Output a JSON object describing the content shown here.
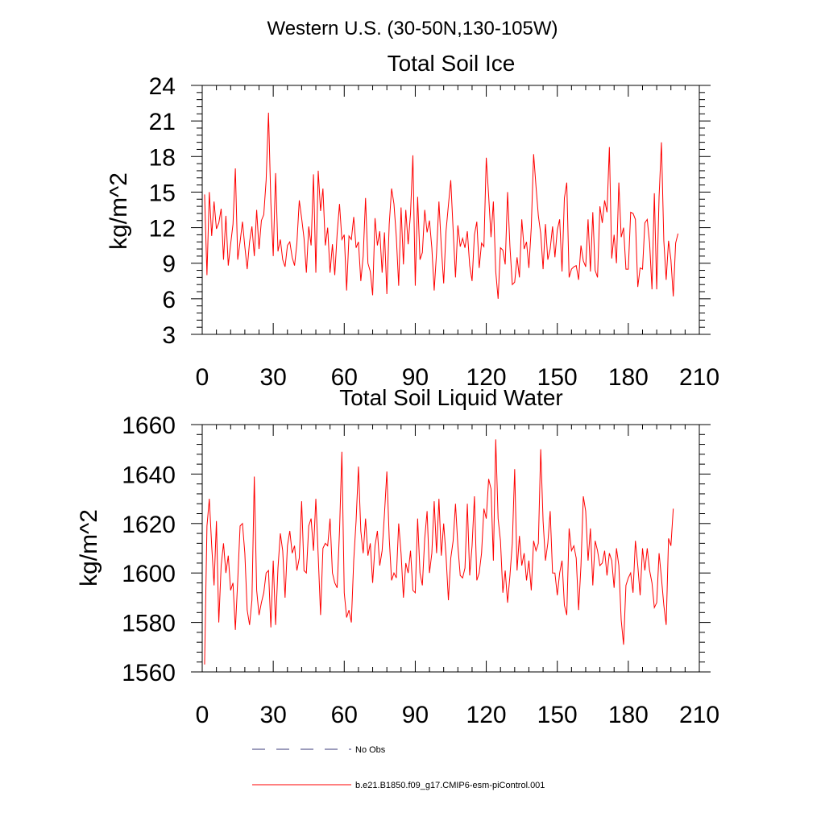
{
  "figure": {
    "suptitle": "Western U.S. (30-50N,130-105W)"
  },
  "colors": {
    "series": "#ff0000",
    "obs": "#3a3a7a",
    "axis": "#000000"
  },
  "legend": {
    "obs_label": "No Obs",
    "model_label": "b.e21.B1850.f09_g17.CMIP6-esm-piControl.001"
  },
  "chart_data": [
    {
      "type": "line",
      "title": "Total Soil Ice",
      "xlabel": "",
      "ylabel": "kg/m^2",
      "xlim": [
        0,
        210
      ],
      "ylim": [
        3,
        24
      ],
      "xticks": [
        0,
        30,
        60,
        90,
        120,
        150,
        180,
        210
      ],
      "yticks": [
        3,
        6,
        9,
        12,
        15,
        18,
        21,
        24
      ],
      "series": [
        {
          "name": "b.e21.B1850.f09_g17.CMIP6-esm-piControl.001",
          "x_start": 1,
          "values": [
            14.8,
            8.0,
            15.0,
            11.3,
            14.2,
            11.9,
            12.4,
            13.6,
            9.3,
            13.0,
            8.8,
            10.6,
            12.3,
            17.0,
            9.3,
            10.8,
            12.5,
            10.4,
            8.5,
            10.8,
            12.1,
            9.6,
            13.5,
            10.2,
            12.6,
            13.1,
            16.0,
            21.7,
            14.1,
            9.6,
            16.6,
            10.0,
            11.0,
            9.3,
            8.7,
            10.5,
            10.8,
            9.5,
            8.8,
            10.7,
            14.3,
            12.8,
            11.1,
            8.2,
            12.1,
            10.5,
            16.5,
            8.2,
            16.8,
            13.4,
            15.3,
            10.5,
            12.0,
            8.2,
            10.6,
            8.0,
            11.5,
            14.0,
            11.0,
            11.4,
            6.7,
            11.3,
            11.0,
            12.9,
            10.3,
            10.8,
            7.5,
            9.6,
            14.5,
            9.0,
            8.3,
            6.3,
            12.8,
            10.5,
            11.7,
            8.2,
            11.6,
            6.4,
            12.3,
            15.3,
            14.0,
            11.2,
            7.1,
            13.7,
            8.9,
            13.5,
            10.6,
            13.2,
            18.1,
            7.1,
            14.6,
            9.3,
            9.9,
            13.5,
            11.6,
            12.6,
            10.3,
            6.7,
            9.9,
            14.2,
            10.4,
            7.3,
            11.7,
            13.9,
            16.0,
            11.8,
            7.8,
            12.2,
            10.4,
            11.1,
            10.3,
            11.7,
            8.8,
            7.5,
            11.4,
            12.5,
            8.6,
            10.7,
            10.4,
            17.9,
            14.7,
            11.2,
            14.2,
            8.3,
            6.0,
            10.3,
            10.1,
            8.9,
            15.0,
            10.4,
            7.2,
            7.4,
            9.5,
            7.8,
            12.7,
            10.2,
            10.8,
            8.6,
            12.0,
            18.2,
            15.5,
            13.0,
            11.5,
            8.5,
            12.3,
            9.3,
            10.2,
            12.1,
            9.5,
            11.8,
            12.7,
            8.3,
            14.5,
            15.8,
            7.8,
            8.5,
            8.7,
            8.8,
            7.6,
            10.5,
            9.2,
            8.7,
            12.7,
            8.3,
            13.3,
            8.4,
            7.8,
            13.8,
            12.4,
            14.3,
            13.3,
            18.8,
            9.4,
            11.4,
            9.0,
            15.8,
            11.2,
            12.0,
            8.5,
            8.5,
            13.3,
            13.2,
            12.7,
            7.0,
            8.6,
            8.5,
            12.4,
            12.7,
            10.7,
            6.8,
            14.9,
            6.8,
            14.6,
            19.2,
            10.9,
            7.6,
            10.9,
            9.3,
            6.2,
            10.7,
            11.5
          ]
        }
      ]
    },
    {
      "type": "line",
      "title": "Total Soil Liquid Water",
      "xlabel": "",
      "ylabel": "kg/m^2",
      "xlim": [
        0,
        210
      ],
      "ylim": [
        1560,
        1660
      ],
      "xticks": [
        0,
        30,
        60,
        90,
        120,
        150,
        180,
        210
      ],
      "yticks": [
        1560,
        1580,
        1600,
        1620,
        1640,
        1660
      ],
      "series": [
        {
          "name": "b.e21.B1850.f09_g17.CMIP6-esm-piControl.001",
          "x_start": 1,
          "values": [
            1563,
            1619,
            1630,
            1611,
            1595,
            1621,
            1580,
            1603,
            1612,
            1600,
            1607,
            1593,
            1596,
            1577,
            1597,
            1619,
            1620,
            1608,
            1585,
            1579,
            1589,
            1639,
            1593,
            1583,
            1588,
            1592,
            1600,
            1601,
            1578,
            1605,
            1579,
            1602,
            1616,
            1609,
            1590,
            1611,
            1617,
            1608,
            1611,
            1601,
            1606,
            1629,
            1601,
            1600,
            1619,
            1622,
            1609,
            1630,
            1607,
            1583,
            1610,
            1612,
            1611,
            1622,
            1600,
            1596,
            1594,
            1617,
            1649,
            1592,
            1582,
            1585,
            1580,
            1605,
            1621,
            1643,
            1617,
            1608,
            1622,
            1607,
            1612,
            1596,
            1611,
            1617,
            1603,
            1609,
            1624,
            1641,
            1614,
            1597,
            1600,
            1598,
            1620,
            1608,
            1590,
            1604,
            1600,
            1609,
            1593,
            1592,
            1622,
            1600,
            1595,
            1614,
            1625,
            1600,
            1608,
            1629,
            1608,
            1630,
            1607,
            1620,
            1607,
            1589,
            1606,
            1613,
            1628,
            1611,
            1599,
            1598,
            1602,
            1628,
            1599,
            1611,
            1631,
            1597,
            1600,
            1608,
            1626,
            1622,
            1638,
            1634,
            1605,
            1654,
            1622,
            1613,
            1592,
            1601,
            1588,
            1599,
            1612,
            1642,
            1601,
            1615,
            1603,
            1608,
            1597,
            1605,
            1593,
            1613,
            1609,
            1612,
            1650,
            1621,
            1605,
            1612,
            1625,
            1600,
            1600,
            1591,
            1600,
            1605,
            1587,
            1583,
            1618,
            1609,
            1611,
            1606,
            1585,
            1603,
            1631,
            1625,
            1605,
            1618,
            1595,
            1613,
            1609,
            1603,
            1604,
            1609,
            1599,
            1608,
            1605,
            1594,
            1610,
            1603,
            1581,
            1571,
            1595,
            1598,
            1600,
            1592,
            1613,
            1603,
            1591,
            1610,
            1601,
            1610,
            1601,
            1596,
            1586,
            1588,
            1608,
            1598,
            1587,
            1579,
            1614,
            1611,
            1626
          ]
        }
      ]
    }
  ]
}
